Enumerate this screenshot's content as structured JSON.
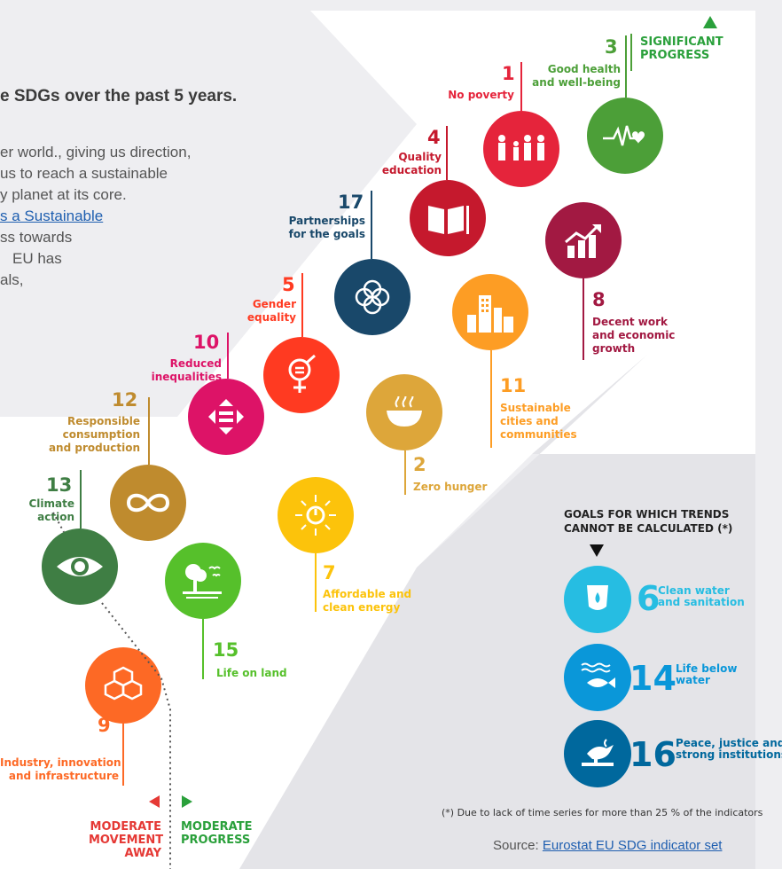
{
  "intro": {
    "heading": "e SDGs over the past 5 years.",
    "lines": [
      "er world., giving us direction,",
      "us to reach a sustainable",
      "y planet at its core.",
      "ss towards",
      "EU has",
      "als,"
    ],
    "link_text": "s a Sustainable"
  },
  "categories": {
    "significant": "SIGNIFICANT\nPROGRESS",
    "moderate_progress": "MODERATE\nPROGRESS",
    "moderate_away": "MODERATE\nMOVEMENT\nAWAY"
  },
  "goals": [
    {
      "id": "g1",
      "number": "1",
      "label": "No poverty",
      "color": "#e5243b",
      "icon": "family-icon"
    },
    {
      "id": "g3",
      "number": "3",
      "label": "Good health\nand well-being",
      "color": "#4c9f38",
      "icon": "heartbeat-icon"
    },
    {
      "id": "g4",
      "number": "4",
      "label": "Quality\neducation",
      "color": "#c5192d",
      "icon": "book-icon"
    },
    {
      "id": "g17",
      "number": "17",
      "label": "Partnerships\nfor the goals",
      "color": "#19486a",
      "icon": "flower-rings-icon"
    },
    {
      "id": "g8",
      "number": "8",
      "label": "Decent work\nand economic\ngrowth",
      "color": "#a21942",
      "icon": "growth-chart-icon"
    },
    {
      "id": "g5",
      "number": "5",
      "label": "Gender\nequality",
      "color": "#ff3a21",
      "icon": "gender-symbol-icon"
    },
    {
      "id": "g11",
      "number": "11",
      "label": "Sustainable\ncities and\ncommunities",
      "color": "#fd9d24",
      "icon": "city-buildings-icon"
    },
    {
      "id": "g10",
      "number": "10",
      "label": "Reduced\ninequalities",
      "color": "#dd1367",
      "icon": "arrows-equal-icon"
    },
    {
      "id": "g2",
      "number": "2",
      "label": "Zero hunger",
      "color": "#dda63a",
      "icon": "soup-bowl-icon"
    },
    {
      "id": "g12",
      "number": "12",
      "label": "Responsible\nconsumption\nand production",
      "color": "#bf8b2e",
      "icon": "infinity-icon"
    },
    {
      "id": "g13",
      "number": "13",
      "label": "Climate\naction",
      "color": "#3f7e44",
      "icon": "eye-globe-icon"
    },
    {
      "id": "g7",
      "number": "7",
      "label": "Affordable and\nclean energy",
      "color": "#fcc30b",
      "icon": "sun-power-icon"
    },
    {
      "id": "g15",
      "number": "15",
      "label": "Life on land",
      "color": "#56c02b",
      "icon": "tree-birds-icon"
    },
    {
      "id": "g9",
      "number": "9",
      "label": "Industry, innovation\nand infrastructure",
      "color": "#fd6925",
      "icon": "cubes-icon"
    }
  ],
  "untracked": {
    "title": "GOALS FOR WHICH TRENDS\nCANNOT BE CALCULATED  (*)",
    "items": [
      {
        "number": "6",
        "label": "Clean water\nand sanitation",
        "color": "#26bde2",
        "icon": "water-drop-icon"
      },
      {
        "number": "14",
        "label": "Life below\nwater",
        "color": "#0a97d9",
        "icon": "fish-waves-icon"
      },
      {
        "number": "16",
        "label": "Peace, justice and\nstrong institutions",
        "color": "#00689d",
        "icon": "dove-gavel-icon"
      }
    ]
  },
  "footnote": "(*)  Due to lack of time series for more than 25 % of the indicators",
  "source": {
    "prefix": "Source: ",
    "link": "Eurostat EU SDG indicator set"
  }
}
